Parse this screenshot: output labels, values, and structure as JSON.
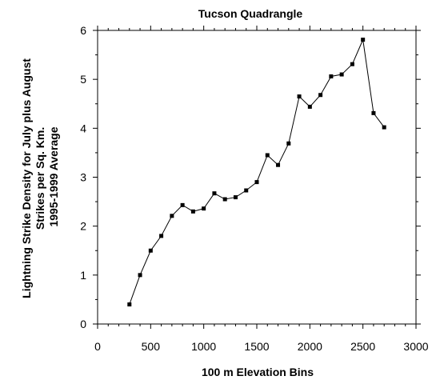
{
  "chart_data": {
    "type": "line",
    "title": "Tucson Quadrangle",
    "xlabel": "100 m Elevation Bins",
    "ylabel_lines": [
      "Lightning Strike Density for July plus August",
      "Strikes per Sq. Km.",
      "1995-1999 Average"
    ],
    "xlim": [
      0,
      3000
    ],
    "ylim": [
      0,
      6
    ],
    "x_ticks": [
      0,
      500,
      1000,
      1500,
      2000,
      2500,
      3000
    ],
    "x_tick_labels": [
      "0",
      "500",
      "1000",
      "1500",
      "2000",
      "2500",
      "3000"
    ],
    "y_ticks": [
      0,
      1,
      2,
      3,
      4,
      5,
      6
    ],
    "y_tick_labels": [
      "0",
      "1",
      "2",
      "3",
      "4",
      "5",
      "6"
    ],
    "x_minor_step": 100,
    "y_minor_step": 0.5,
    "grid": false,
    "legend": "none",
    "series": [
      {
        "x": [
          300,
          400,
          500,
          600,
          700,
          800,
          900,
          1000,
          1100,
          1200,
          1300,
          1400,
          1500,
          1600,
          1700,
          1800,
          1900,
          2000,
          2100,
          2200,
          2300,
          2400,
          2500,
          2600,
          2700
        ],
        "y": [
          0.4,
          1.0,
          1.5,
          1.8,
          2.21,
          2.43,
          2.3,
          2.36,
          2.67,
          2.55,
          2.59,
          2.73,
          2.9,
          3.45,
          3.25,
          3.69,
          4.65,
          4.44,
          4.68,
          5.06,
          5.1,
          5.31,
          5.81,
          4.31,
          4.02
        ],
        "color": "#000000"
      }
    ]
  }
}
